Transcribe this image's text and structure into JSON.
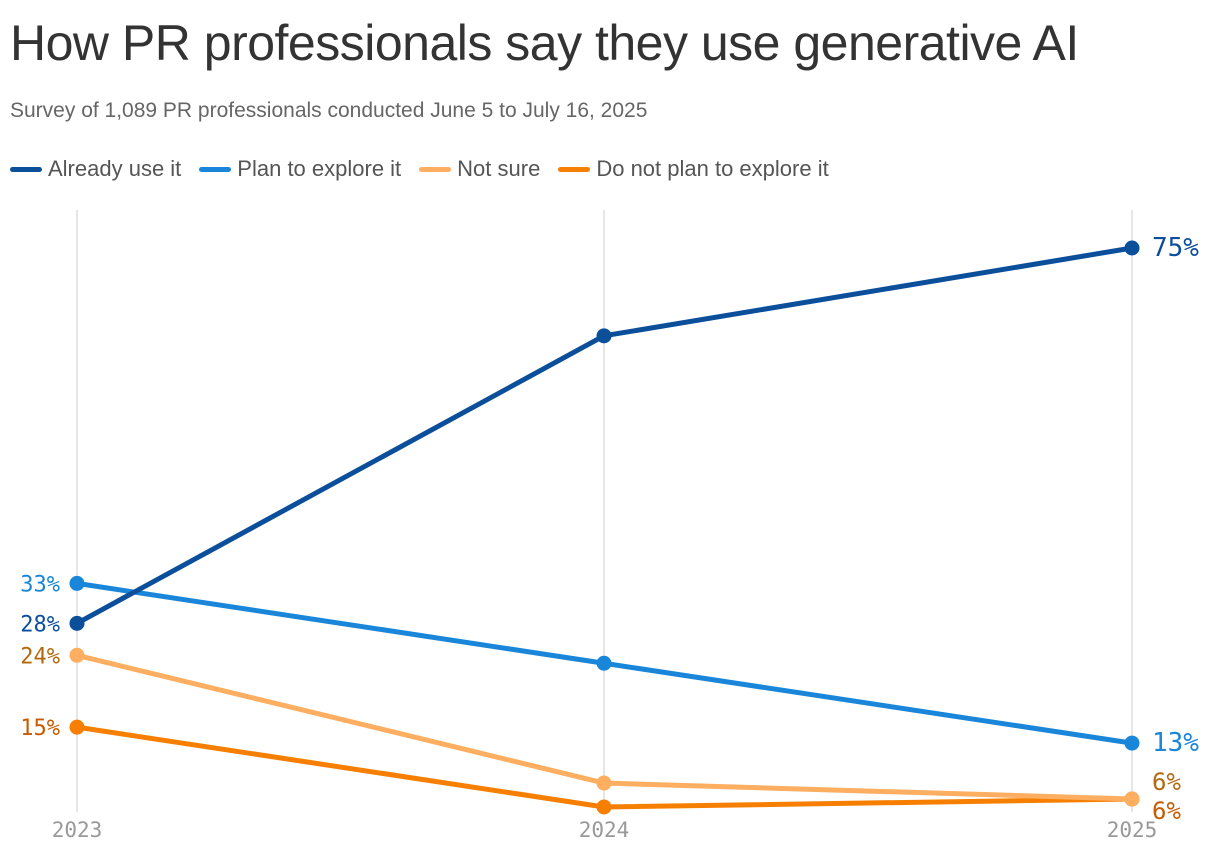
{
  "chart_data": {
    "type": "line",
    "title": "How PR professionals say they use generative AI",
    "subtitle": "Survey of 1,089 PR professionals conducted June 5 to July 16, 2025",
    "x": [
      "2023",
      "2024",
      "2025"
    ],
    "ylim": [
      0,
      80
    ],
    "unit": "%",
    "grid": "vertical",
    "legend_position": "top-left",
    "series": [
      {
        "name": "Already use it",
        "color": "#0b4f9b",
        "label_color": "#0b4f9b",
        "values": [
          28,
          64,
          75
        ],
        "labels": [
          "28%",
          "",
          "75%"
        ]
      },
      {
        "name": "Plan to explore it",
        "color": "#1a86d9",
        "label_color": "#1a86d9",
        "values": [
          33,
          23,
          13
        ],
        "labels": [
          "33%",
          "",
          "13%"
        ]
      },
      {
        "name": "Not sure",
        "color": "#fdae61",
        "label_color": "#b3690f",
        "values": [
          24,
          8,
          6
        ],
        "labels": [
          "24%",
          "",
          "6%"
        ]
      },
      {
        "name": "Do not plan to explore it",
        "color": "#f77f00",
        "label_color": "#c85a00",
        "values": [
          15,
          5,
          6
        ],
        "labels": [
          "15%",
          "",
          "6%"
        ]
      }
    ]
  }
}
